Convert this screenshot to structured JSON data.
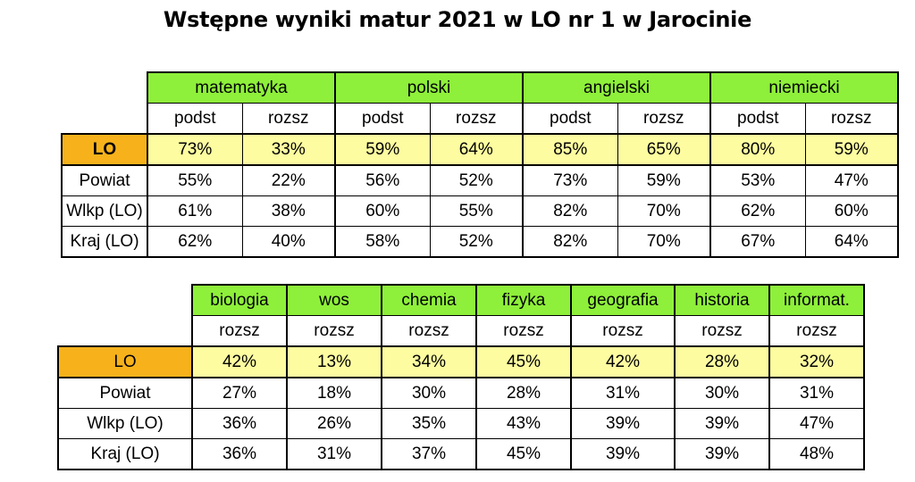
{
  "title": "Wstępne wyniki matur 2021 w LO nr 1 w Jarocinie",
  "table1": {
    "subjects": [
      "matematyka",
      "polski",
      "angielski",
      "niemiecki"
    ],
    "levels": [
      "podst",
      "rozsz",
      "podst",
      "rozsz",
      "podst",
      "rozsz",
      "podst",
      "rozsz"
    ],
    "rows": [
      {
        "label": "LO",
        "values": [
          "73%",
          "33%",
          "59%",
          "64%",
          "85%",
          "65%",
          "80%",
          "59%"
        ]
      },
      {
        "label": "Powiat",
        "values": [
          "55%",
          "22%",
          "56%",
          "52%",
          "73%",
          "59%",
          "53%",
          "47%"
        ]
      },
      {
        "label": "Wlkp (LO)",
        "values": [
          "61%",
          "38%",
          "60%",
          "55%",
          "82%",
          "70%",
          "62%",
          "60%"
        ]
      },
      {
        "label": "Kraj (LO)",
        "values": [
          "62%",
          "40%",
          "58%",
          "52%",
          "82%",
          "70%",
          "67%",
          "64%"
        ]
      }
    ]
  },
  "table2": {
    "subjects": [
      "biologia",
      "wos",
      "chemia",
      "fizyka",
      "geografia",
      "historia",
      "informat."
    ],
    "levels": [
      "rozsz",
      "rozsz",
      "rozsz",
      "rozsz",
      "rozsz",
      "rozsz",
      "rozsz"
    ],
    "rows": [
      {
        "label": "LO",
        "values": [
          "42%",
          "13%",
          "34%",
          "45%",
          "42%",
          "28%",
          "32%"
        ]
      },
      {
        "label": "Powiat",
        "values": [
          "27%",
          "18%",
          "30%",
          "28%",
          "31%",
          "30%",
          "31%"
        ]
      },
      {
        "label": "Wlkp (LO)",
        "values": [
          "36%",
          "26%",
          "35%",
          "43%",
          "39%",
          "39%",
          "47%"
        ]
      },
      {
        "label": "Kraj (LO)",
        "values": [
          "36%",
          "31%",
          "37%",
          "45%",
          "39%",
          "39%",
          "48%"
        ]
      }
    ]
  },
  "colors": {
    "header_green": "#8ef03a",
    "highlight_yellow": "#fdfca0",
    "lo_orange": "#f7b21b"
  }
}
